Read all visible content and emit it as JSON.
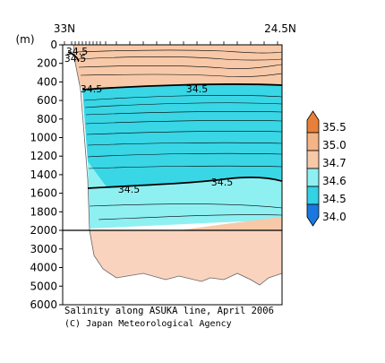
{
  "chart_data": {
    "type": "heatmap",
    "title": "Salinity along ASUKA line, April 2006",
    "credit": "(C) Japan Meteorological Agency",
    "ylabel": "(m)",
    "x_start_label": "33N",
    "x_end_label": "24.5N",
    "y_ticks_upper": [
      0,
      200,
      400,
      600,
      800,
      1000,
      1200,
      1400,
      1600,
      1800,
      2000
    ],
    "y_ticks_lower": [
      3000,
      4000,
      5000,
      6000
    ],
    "ylim_upper": [
      0,
      2000
    ],
    "ylim_lower": [
      2000,
      6000
    ],
    "contour_labels": [
      "34.5",
      "34.5",
      "34.5",
      "34.5",
      "34.5",
      "34.5"
    ],
    "colorbar_ticks": [
      "35.5",
      "35.0",
      "34.7",
      "34.6",
      "34.5",
      "34.0"
    ],
    "colorbar_colors": [
      "#e8803a",
      "#f4b486",
      "#f7c9a8",
      "#8ff0f2",
      "#33d2e4",
      "#1a78e0"
    ],
    "region_colors": {
      "surface_salty": "#f7c9a8",
      "core_fresh": "#39d6e6",
      "low_salinity": "#8ff0f2",
      "deep": "#f9d3be"
    }
  }
}
